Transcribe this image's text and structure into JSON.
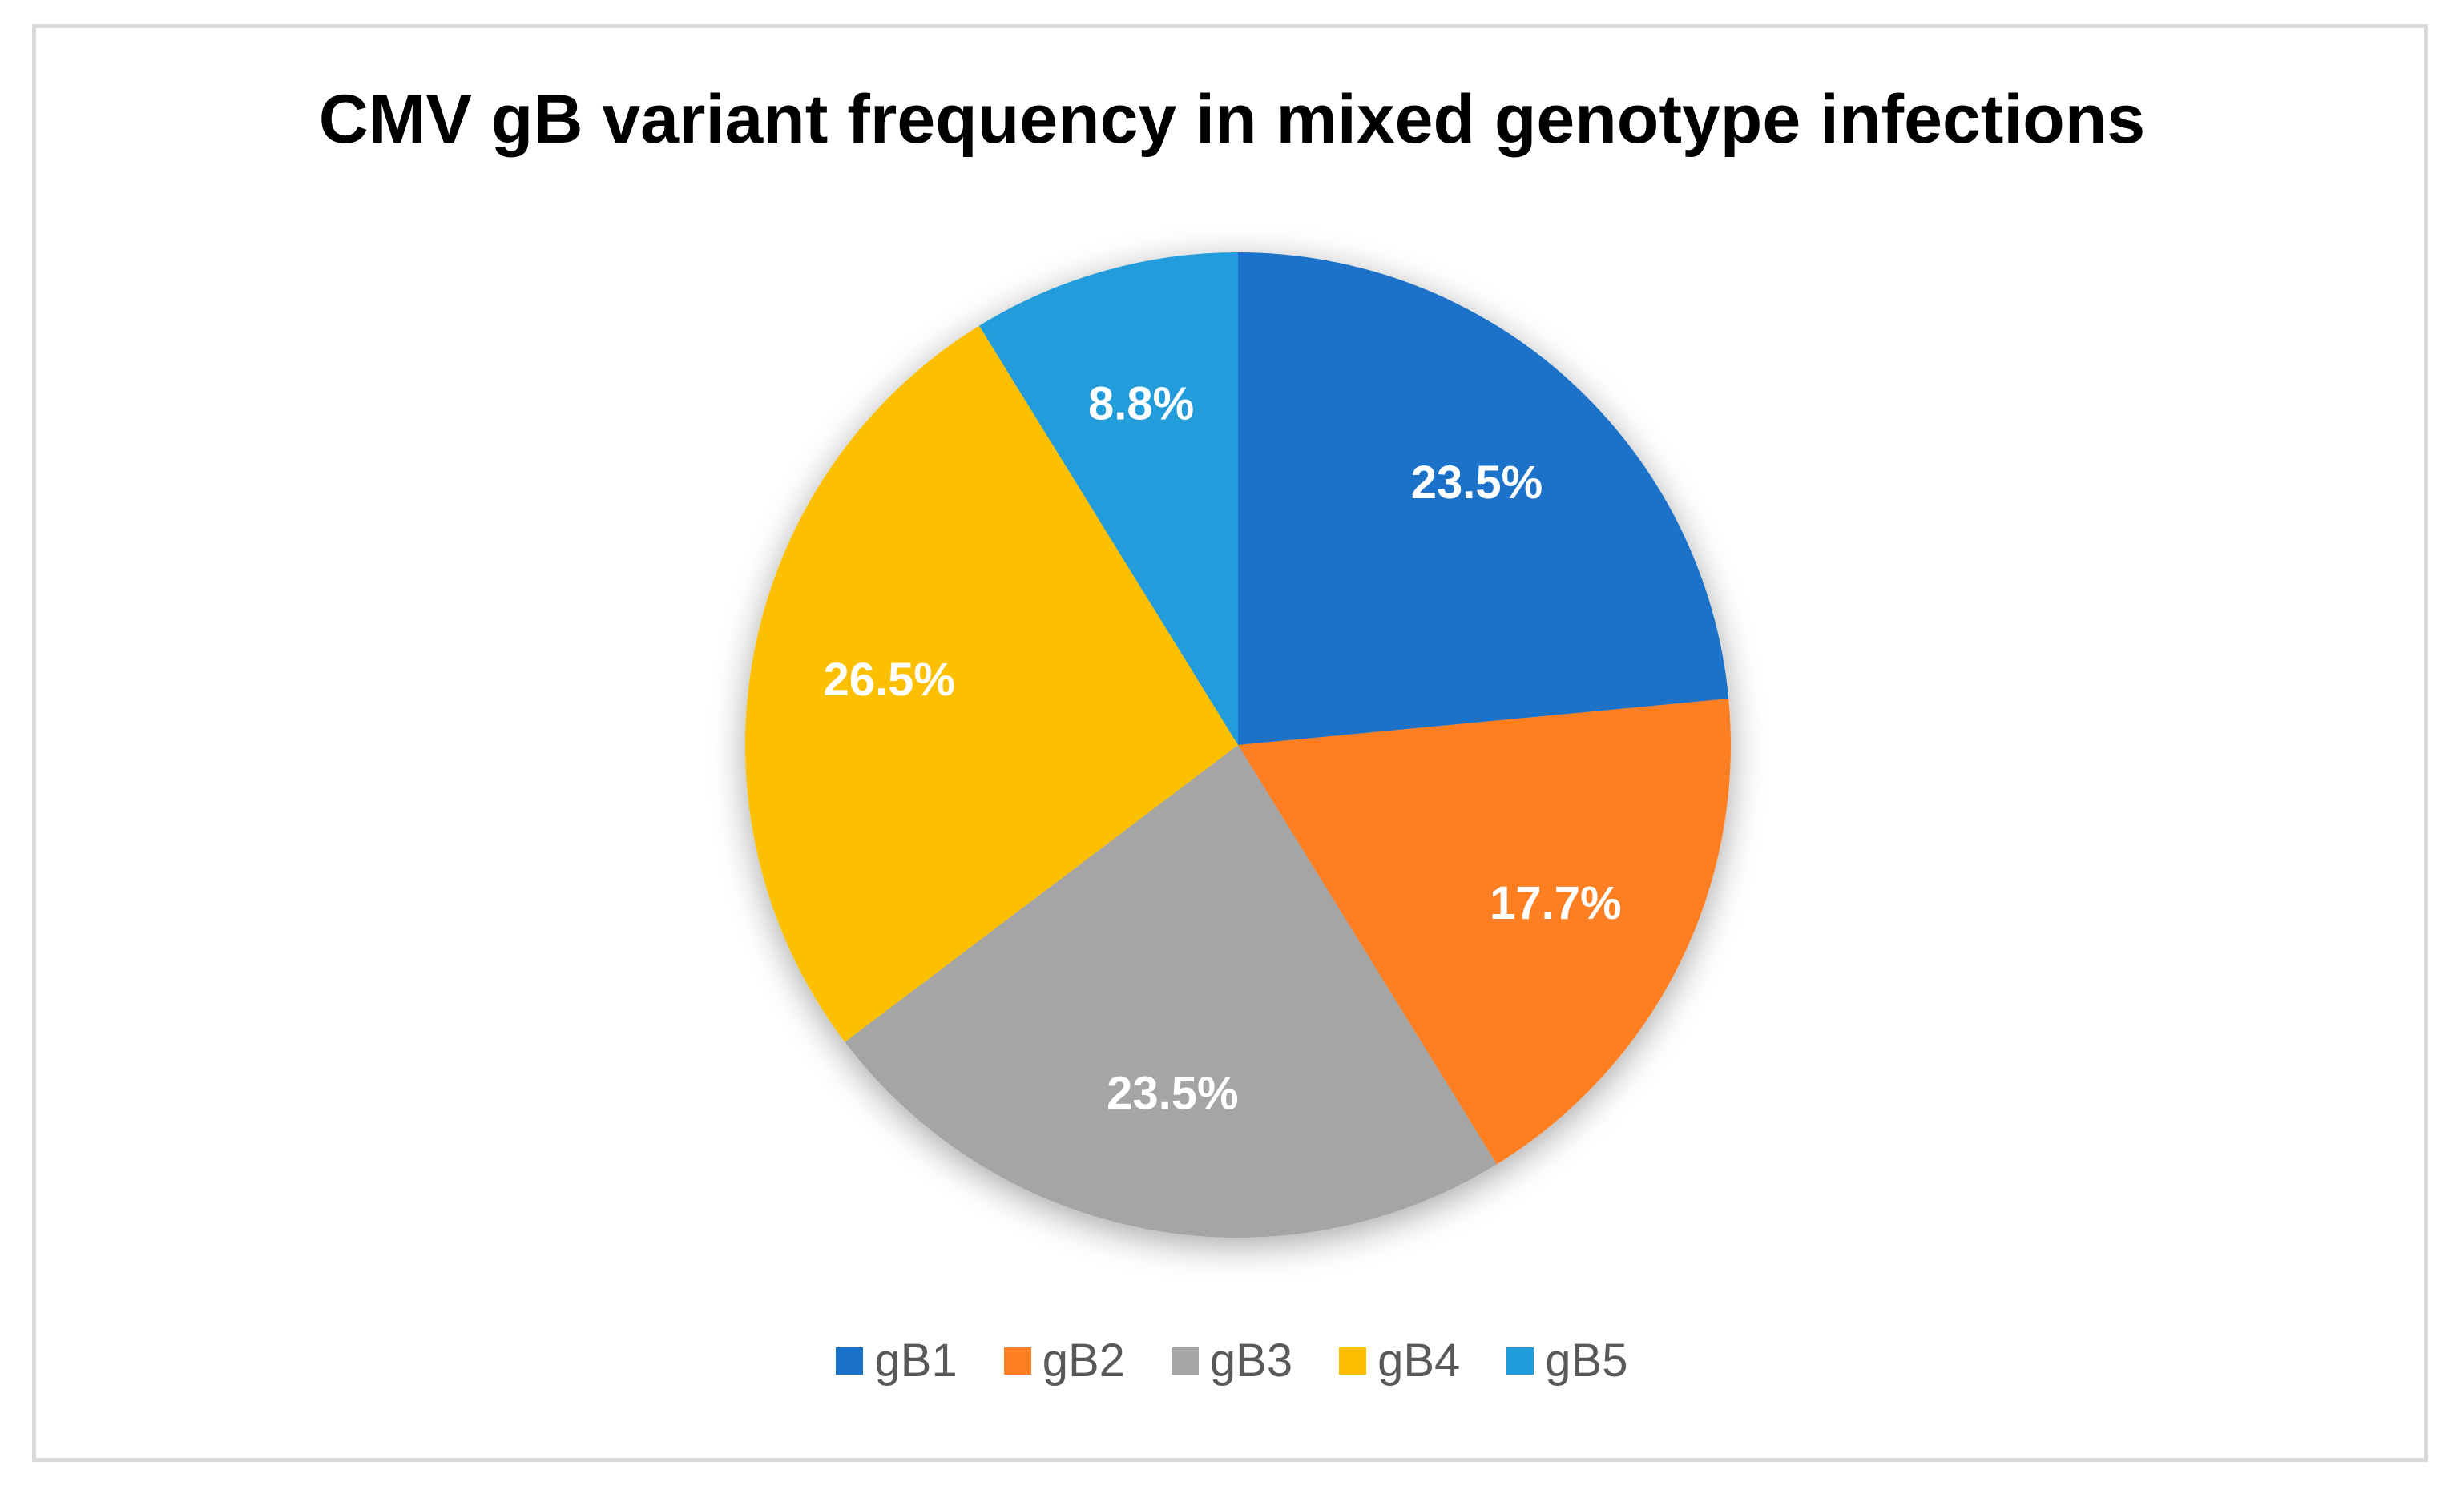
{
  "chart_data": {
    "type": "pie",
    "title": "CMV gB variant frequency in mixed genotype infections",
    "categories": [
      "gB1",
      "gB2",
      "gB3",
      "gB4",
      "gB5"
    ],
    "values": [
      23.5,
      17.7,
      23.5,
      26.5,
      8.8
    ],
    "labels": [
      "23.5%",
      "17.7%",
      "23.5%",
      "26.5%",
      "8.8%"
    ],
    "colors": [
      "#1a72c8",
      "#fd7f22",
      "#a5a5a5",
      "#fdc000",
      "#219cda"
    ],
    "legend_position": "bottom",
    "start_angle": "12 o'clock",
    "direction": "clockwise"
  }
}
